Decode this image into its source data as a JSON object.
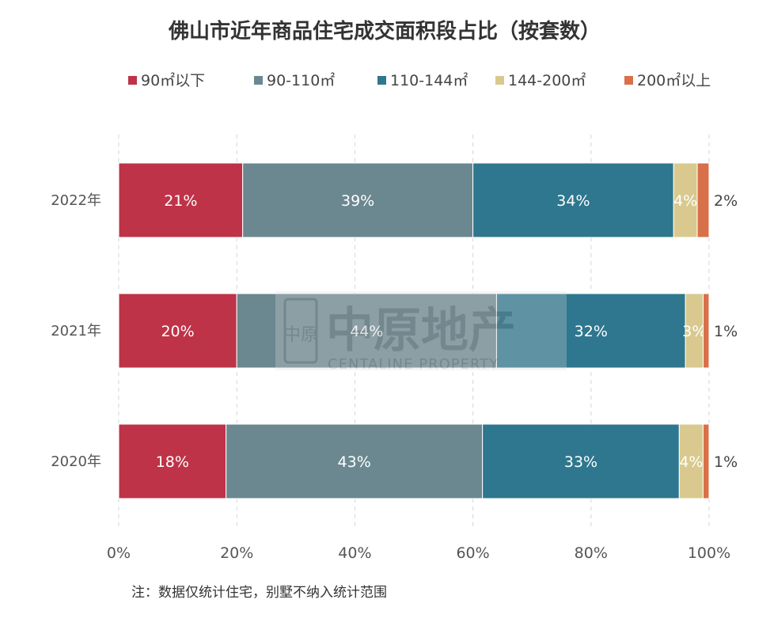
{
  "chart_data": {
    "type": "bar",
    "orientation": "horizontal",
    "stacked": true,
    "title": "佛山市近年商品住宅成交面积段占比（按套数）",
    "categories": [
      "2022年",
      "2021年",
      "2020年"
    ],
    "series": [
      {
        "name": "90㎡以下",
        "color": "#BE3347",
        "values": [
          21,
          20,
          18
        ],
        "labels": [
          "21%",
          "20%",
          "18%"
        ]
      },
      {
        "name": "90-110㎡",
        "color": "#6B8890",
        "values": [
          39,
          44,
          43
        ],
        "labels": [
          "39%",
          "44%",
          "43%"
        ]
      },
      {
        "name": "110-144㎡",
        "color": "#2E778E",
        "values": [
          34,
          32,
          33
        ],
        "labels": [
          "34%",
          "32%",
          "33%"
        ]
      },
      {
        "name": "144-200㎡",
        "color": "#D9C98E",
        "values": [
          4,
          3,
          4
        ],
        "labels": [
          "4%",
          "3%",
          "4%"
        ]
      },
      {
        "name": "200㎡以上",
        "color": "#D8704A",
        "values": [
          2,
          1,
          1
        ],
        "labels": [
          "2%",
          "1%",
          "1%"
        ]
      }
    ],
    "xticks": [
      "0%",
      "20%",
      "40%",
      "60%",
      "80%",
      "100%"
    ],
    "xlim": [
      0,
      100
    ],
    "grid": "vertical dashed",
    "legend_position": "top"
  },
  "note": "注：数据仅统计住宅，别墅不纳入统计范围",
  "watermark": {
    "logo_glyphs": "中原",
    "text": "中原地产",
    "subtext": "CENTALINE PROPERTY"
  }
}
